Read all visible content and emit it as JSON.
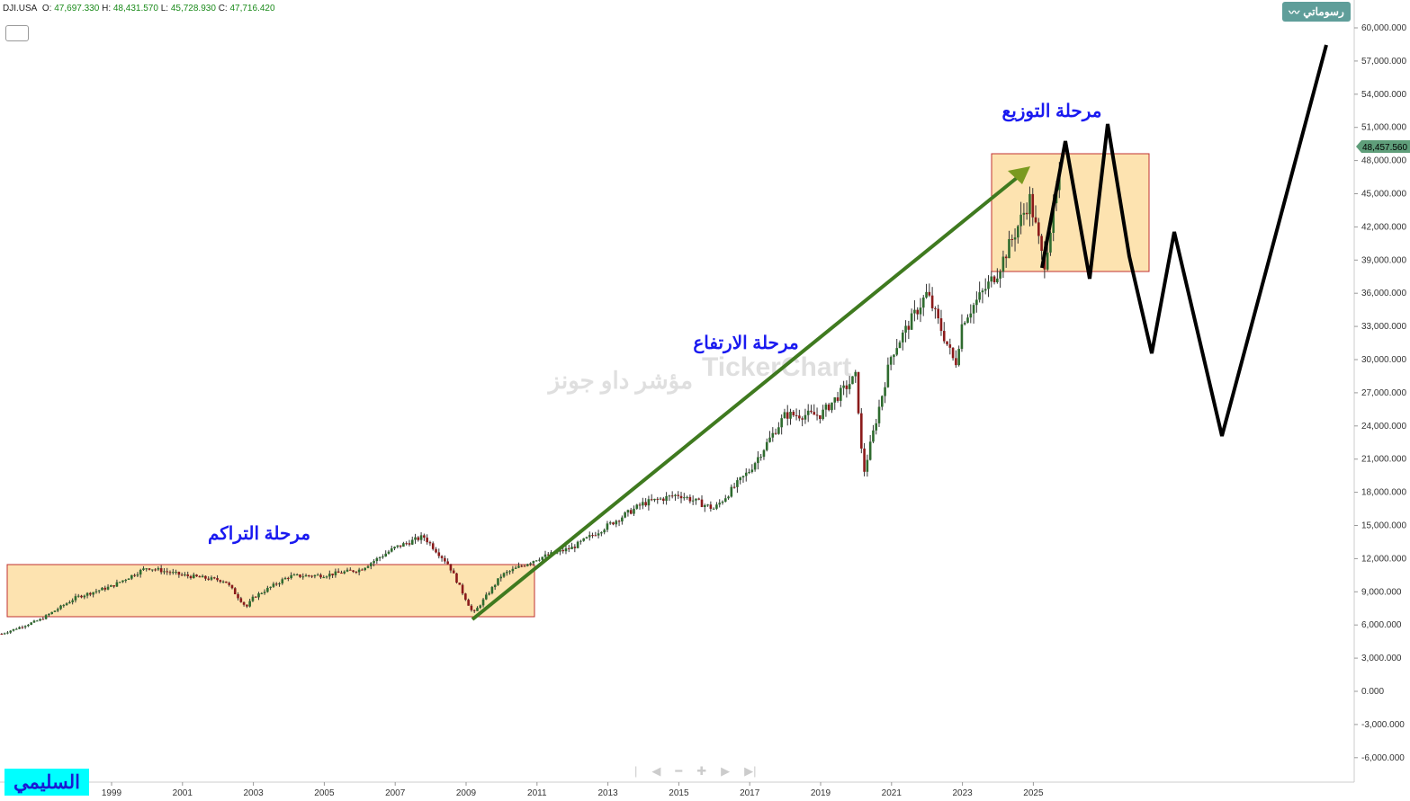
{
  "header": {
    "symbol": "DJI.USA",
    "o_label": "O:",
    "o": "47,697.330",
    "h_label": "H:",
    "h": "48,431.570",
    "l_label": "L:",
    "l": "45,728.930",
    "c_label": "C:",
    "c": "47,716.420"
  },
  "my_drawings_label": "رسوماتي",
  "author_tag": "السليمي",
  "nav_icons": [
    "first-icon",
    "prev-icon",
    "zoom-out-icon",
    "zoom-in-icon",
    "next-icon",
    "last-icon"
  ],
  "watermark": {
    "brand": "TickerChart",
    "name": "مؤشر داو جونز"
  },
  "chart_data": {
    "type": "candlestick",
    "title": "DJI.USA",
    "last_price": "48,457.560",
    "ylim": [
      -6000,
      60000
    ],
    "y_ticks": [
      "60,000.000",
      "57,000.000",
      "54,000.000",
      "51,000.000",
      "48,000.000",
      "45,000.000",
      "42,000.000",
      "39,000.000",
      "36,000.000",
      "33,000.000",
      "30,000.000",
      "27,000.000",
      "24,000.000",
      "21,000.000",
      "18,000.000",
      "15,000.000",
      "12,000.000",
      "9,000.000",
      "6,000.000",
      "3,000.000",
      "0.000",
      "-3,000.000",
      "-6,000.000"
    ],
    "y_tick_values": [
      60000,
      57000,
      54000,
      51000,
      48000,
      45000,
      42000,
      39000,
      36000,
      33000,
      30000,
      27000,
      24000,
      21000,
      18000,
      15000,
      12000,
      9000,
      6000,
      3000,
      0,
      -3000,
      -6000
    ],
    "x_ticks": [
      "1999",
      "2001",
      "2003",
      "2005",
      "2007",
      "2009",
      "2011",
      "2013",
      "2015",
      "2017",
      "2019",
      "2021",
      "2023",
      "2025"
    ],
    "series_anchors": [
      [
        1995.9,
        5200
      ],
      [
        1997,
        6500
      ],
      [
        1998,
        8500
      ],
      [
        1999,
        9500
      ],
      [
        2000,
        11200
      ],
      [
        2001,
        10500
      ],
      [
        2002.2,
        10000
      ],
      [
        2002.8,
        7600
      ],
      [
        2003,
        8500
      ],
      [
        2004,
        10400
      ],
      [
        2005,
        10500
      ],
      [
        2006,
        11000
      ],
      [
        2007,
        13000
      ],
      [
        2007.8,
        14000
      ],
      [
        2008.5,
        11500
      ],
      [
        2009.2,
        7000
      ],
      [
        2010,
        10500
      ],
      [
        2011,
        12000
      ],
      [
        2012,
        13000
      ],
      [
        2013,
        15000
      ],
      [
        2014,
        17000
      ],
      [
        2015,
        17800
      ],
      [
        2016,
        16500
      ],
      [
        2017,
        20000
      ],
      [
        2018,
        25000
      ],
      [
        2019,
        25000
      ],
      [
        2020,
        28500
      ],
      [
        2020.2,
        19500
      ],
      [
        2021,
        30500
      ],
      [
        2022,
        36000
      ],
      [
        2022.8,
        29500
      ],
      [
        2023,
        33500
      ],
      [
        2024,
        38000
      ],
      [
        2024.9,
        44500
      ],
      [
        2025.3,
        38500
      ],
      [
        2025.8,
        47700
      ]
    ],
    "annotations": {
      "accumulation": "مرحلة التراكم",
      "markup": "مرحلة الارتفاع",
      "distribution": "مرحلة التوزيع"
    }
  }
}
